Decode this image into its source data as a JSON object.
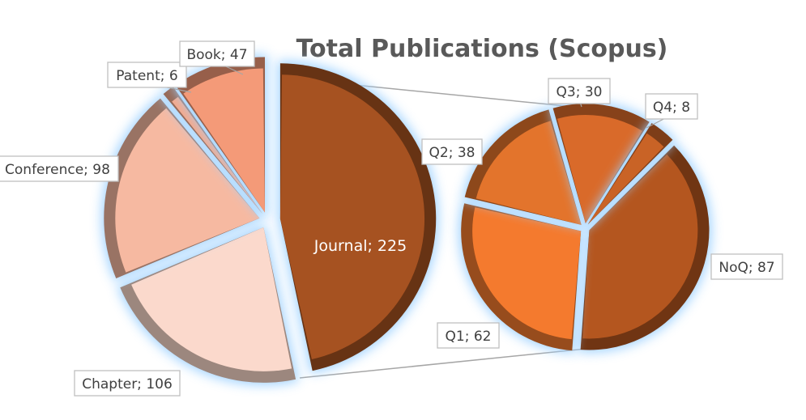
{
  "chart_data": {
    "type": "pie",
    "subtype": "pie-of-pie",
    "title": "Total Publications (Scopus)",
    "main_pie": {
      "slices": [
        {
          "label": "Journal",
          "value": 225,
          "display": "Journal; 225",
          "color": "#a65221"
        },
        {
          "label": "Chapter",
          "value": 106,
          "display": "Chapter; 106",
          "color": "#fbd9cc"
        },
        {
          "label": "Conference",
          "value": 98,
          "display": "Conference; 98",
          "color": "#f6b9a1"
        },
        {
          "label": "Patent",
          "value": 6,
          "display": "Patent; 6",
          "color": "#f4a98c"
        },
        {
          "label": "Book",
          "value": 47,
          "display": "Book; 47",
          "color": "#f49a78"
        }
      ]
    },
    "secondary_pie": {
      "breakdown_of": "Journal",
      "slices": [
        {
          "label": "NoQ",
          "value": 87,
          "display": "NoQ; 87",
          "color": "#b4561f"
        },
        {
          "label": "Q1",
          "value": 62,
          "display": "Q1; 62",
          "color": "#f47a2e"
        },
        {
          "label": "Q2",
          "value": 38,
          "display": "Q2; 38",
          "color": "#e3742c"
        },
        {
          "label": "Q3",
          "value": 30,
          "display": "Q3; 30",
          "color": "#d96a2a"
        },
        {
          "label": "Q4",
          "value": 8,
          "display": "Q4; 8",
          "color": "#c96326"
        }
      ]
    },
    "legend": "none",
    "grid": false
  }
}
